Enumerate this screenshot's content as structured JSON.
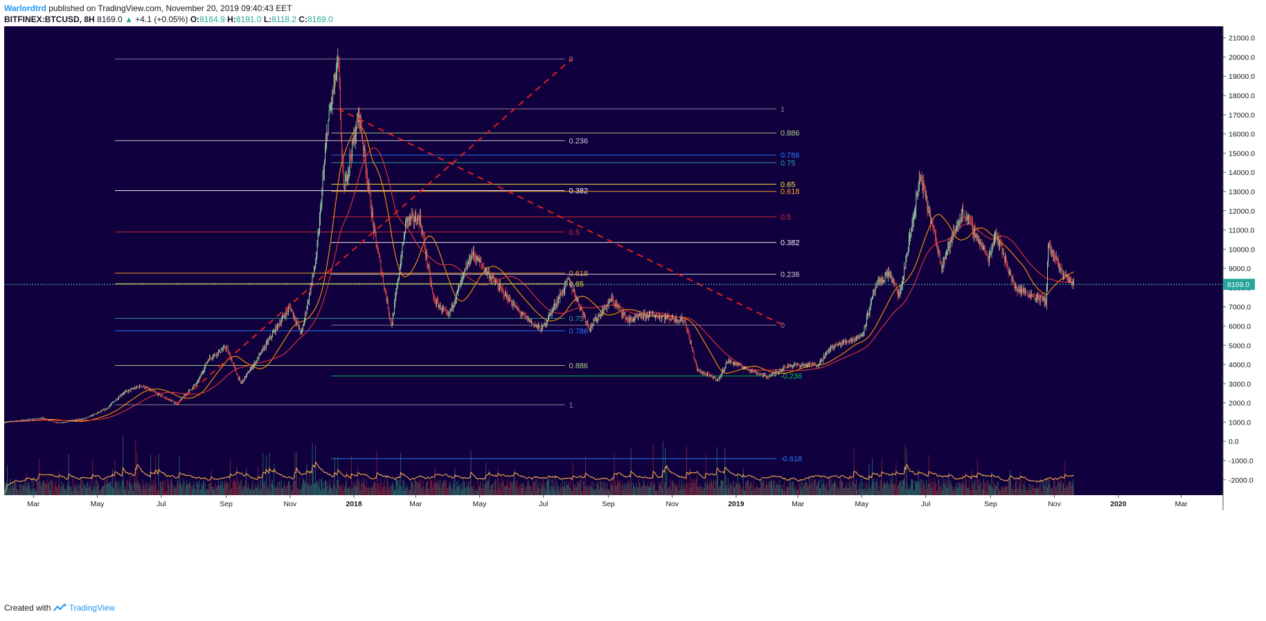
{
  "header": {
    "author": "Warlordtrd",
    "published": "published on TradingView.com, November 20, 2019 09:40:43 EET",
    "symbol": "BITFINEX:BTCUSD, 8H",
    "last": "8169.0",
    "change_arrow": "▲",
    "change": "+4.1 (+0.05%)",
    "o_label": "O:",
    "o": "8164.9",
    "h_label": "H:",
    "h": "8191.0",
    "l_label": "L:",
    "l": "8118.2",
    "c_label": "C:",
    "c": "8169.0"
  },
  "footer": {
    "created": "Created with",
    "brand": "TradingView"
  },
  "colors": {
    "background": "#10003d",
    "up": "#9fd7a8",
    "down": "#e64a4a",
    "ma_fast": "#ff9800",
    "ma_slow": "#e53935",
    "trend": "#e02020",
    "last_price_line": "#4dd0c8",
    "last_price_badge": "#26a69a"
  },
  "chart_data": {
    "type": "candlestick",
    "symbol": "BITFINEX:BTCUSD",
    "interval": "8H",
    "price_axis": {
      "ticks": [
        "21000.0",
        "20000.0",
        "19000.0",
        "18000.0",
        "17000.0",
        "16000.0",
        "15000.0",
        "14000.0",
        "13000.0",
        "12000.0",
        "11000.0",
        "10000.0",
        "9000.0",
        "8000.0",
        "7000.0",
        "6000.0",
        "5000.0",
        "4000.0",
        "3000.0",
        "2000.0",
        "1000.0",
        "0.0",
        "-1000.0",
        "-2000.0"
      ],
      "range": [
        -2800,
        21600
      ],
      "last_price_label": "8169.0"
    },
    "time_axis": {
      "ticks": [
        "Mar",
        "May",
        "Jul",
        "Sep",
        "Nov",
        "2018",
        "Mar",
        "May",
        "Jul",
        "Sep",
        "Nov",
        "2019",
        "Mar",
        "May",
        "Jul",
        "Sep",
        "Nov",
        "2020",
        "Mar"
      ],
      "start": "2017-02-01",
      "end": "2020-04-10"
    },
    "price_path": [
      [
        "2017-02-01",
        1000
      ],
      [
        "2017-03-10",
        1200
      ],
      [
        "2017-03-25",
        950
      ],
      [
        "2017-04-20",
        1200
      ],
      [
        "2017-05-10",
        1700
      ],
      [
        "2017-05-25",
        2500
      ],
      [
        "2017-06-12",
        2900
      ],
      [
        "2017-07-16",
        1950
      ],
      [
        "2017-08-05",
        3100
      ],
      [
        "2017-08-15",
        4300
      ],
      [
        "2017-09-01",
        4900
      ],
      [
        "2017-09-15",
        3000
      ],
      [
        "2017-10-01",
        4300
      ],
      [
        "2017-10-20",
        6000
      ],
      [
        "2017-11-01",
        7000
      ],
      [
        "2017-11-12",
        5600
      ],
      [
        "2017-11-26",
        9500
      ],
      [
        "2017-12-07",
        16500
      ],
      [
        "2017-12-17",
        19800
      ],
      [
        "2017-12-22",
        13000
      ],
      [
        "2018-01-06",
        17100
      ],
      [
        "2018-01-20",
        11000
      ],
      [
        "2018-02-06",
        6000
      ],
      [
        "2018-02-20",
        11500
      ],
      [
        "2018-03-05",
        11600
      ],
      [
        "2018-03-18",
        7400
      ],
      [
        "2018-04-01",
        6500
      ],
      [
        "2018-04-24",
        9800
      ],
      [
        "2018-05-20",
        8000
      ],
      [
        "2018-06-10",
        6600
      ],
      [
        "2018-06-29",
        5800
      ],
      [
        "2018-07-25",
        8400
      ],
      [
        "2018-08-14",
        5900
      ],
      [
        "2018-09-04",
        7400
      ],
      [
        "2018-09-20",
        6300
      ],
      [
        "2018-10-10",
        6600
      ],
      [
        "2018-11-13",
        6300
      ],
      [
        "2018-11-25",
        3700
      ],
      [
        "2018-12-15",
        3200
      ],
      [
        "2018-12-24",
        4200
      ],
      [
        "2019-01-31",
        3350
      ],
      [
        "2019-02-20",
        3950
      ],
      [
        "2019-03-20",
        4000
      ],
      [
        "2019-04-02",
        4900
      ],
      [
        "2019-05-01",
        5500
      ],
      [
        "2019-05-14",
        8000
      ],
      [
        "2019-05-27",
        8800
      ],
      [
        "2019-06-06",
        7500
      ],
      [
        "2019-06-26",
        13800
      ],
      [
        "2019-07-16",
        9200
      ],
      [
        "2019-08-06",
        12000
      ],
      [
        "2019-08-30",
        9500
      ],
      [
        "2019-09-06",
        10900
      ],
      [
        "2019-09-24",
        8000
      ],
      [
        "2019-10-24",
        7300
      ],
      [
        "2019-10-26",
        10200
      ],
      [
        "2019-11-08",
        8800
      ],
      [
        "2019-11-20",
        8169
      ]
    ],
    "fibonacci_sets": [
      {
        "anchor_low": [
          "2017-07-16",
          1900
        ],
        "anchor_high": [
          "2017-12-17",
          19900
        ],
        "label_at": "2018-07-28",
        "levels": [
          {
            "label": "0",
            "price": 19900,
            "color": "#8a8a9a"
          },
          {
            "label": "0.236",
            "price": 15650,
            "color": "#cfcfd8"
          },
          {
            "label": "0.382",
            "price": 13050,
            "color": "#ffffff"
          },
          {
            "label": "0.5",
            "price": 10900,
            "color": "#d32f2f"
          },
          {
            "label": "0.618",
            "price": 8750,
            "color": "#ffa726"
          },
          {
            "label": "0.65",
            "price": 8200,
            "color": "#ffeb3b"
          },
          {
            "label": "0.75",
            "price": 6400,
            "color": "#26a69a"
          },
          {
            "label": "0.786",
            "price": 5750,
            "color": "#2979ff"
          },
          {
            "label": "0.886",
            "price": 3950,
            "color": "#aed581"
          },
          {
            "label": "1",
            "price": 1900,
            "color": "#8a8a9a"
          }
        ]
      },
      {
        "anchor_high": [
          "2017-12-17",
          17300
        ],
        "anchor_low": [
          "2019-02-15",
          6050
        ],
        "label_at": "2019-02-15",
        "levels": [
          {
            "label": "1",
            "price": 17300,
            "color": "#8a8a9a"
          },
          {
            "label": "0.886",
            "price": 16050,
            "color": "#aed581"
          },
          {
            "label": "0.786",
            "price": 14900,
            "color": "#2979ff"
          },
          {
            "label": "0.75",
            "price": 14500,
            "color": "#26a69a"
          },
          {
            "label": "0.65",
            "price": 13380,
            "color": "#ffeb3b"
          },
          {
            "label": "0.618",
            "price": 13010,
            "color": "#ffa726"
          },
          {
            "label": "0.5",
            "price": 11680,
            "color": "#d32f2f"
          },
          {
            "label": "0.382",
            "price": 10350,
            "color": "#ffffff"
          },
          {
            "label": "0.236",
            "price": 8700,
            "color": "#cfcfd8"
          },
          {
            "label": "0",
            "price": 6050,
            "color": "#8a8a9a"
          },
          {
            "label": "-0.236",
            "price": 3400,
            "color": "#00c853"
          },
          {
            "label": "-0.618",
            "price": -900,
            "color": "#2979ff"
          }
        ]
      }
    ],
    "trendlines": [
      {
        "from": [
          "2017-07-16",
          1950
        ],
        "to": [
          "2018-07-28",
          19900
        ],
        "style": "dashed"
      },
      {
        "from": [
          "2017-12-17",
          17300
        ],
        "to": [
          "2019-02-15",
          6050
        ],
        "style": "dashed"
      }
    ],
    "volume": {
      "shown": true,
      "overlay_in_price_pane": true
    }
  }
}
